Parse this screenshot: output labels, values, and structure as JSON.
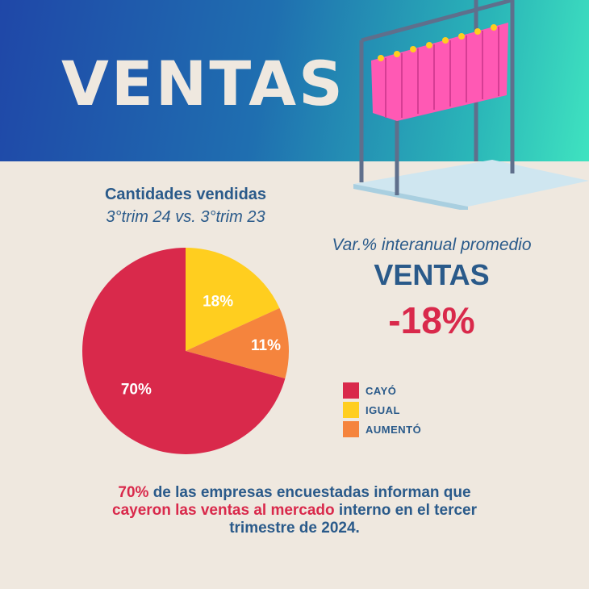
{
  "header": {
    "title": "VENTAS"
  },
  "chart_title": "Cantidades vendidas",
  "chart_subtitle": "3°trim 24 vs. 3°trim 23",
  "stat": {
    "label": "Var.% interanual promedio",
    "title": "VENTAS",
    "value": "-18%"
  },
  "chart_data": {
    "type": "pie",
    "title": "Cantidades vendidas",
    "subtitle": "3°trim 24 vs. 3°trim 23",
    "legend_position": "right",
    "slices": [
      {
        "name": "CAYÓ",
        "value": 70,
        "label": "70%",
        "color": "#d9294b"
      },
      {
        "name": "IGUAL",
        "value": 18,
        "label": "18%",
        "color": "#ffce1f"
      },
      {
        "name": "AUMENTÓ",
        "value": 11,
        "label": "11%",
        "color": "#f5843d"
      }
    ]
  },
  "footer": {
    "line1_highlight": "70%",
    "line1_rest": " de las empresas encuestadas informan que",
    "line2_highlight": "cayeron las ventas al mercado",
    "line2_rest": " interno en el tercer",
    "line3": "trimestre de 2024."
  },
  "colors": {
    "banner_start": "#1f47a8",
    "banner_end": "#3fe3c0",
    "text_blue": "#2a5a8a",
    "accent_red": "#d9294b",
    "background": "#efe8df"
  }
}
